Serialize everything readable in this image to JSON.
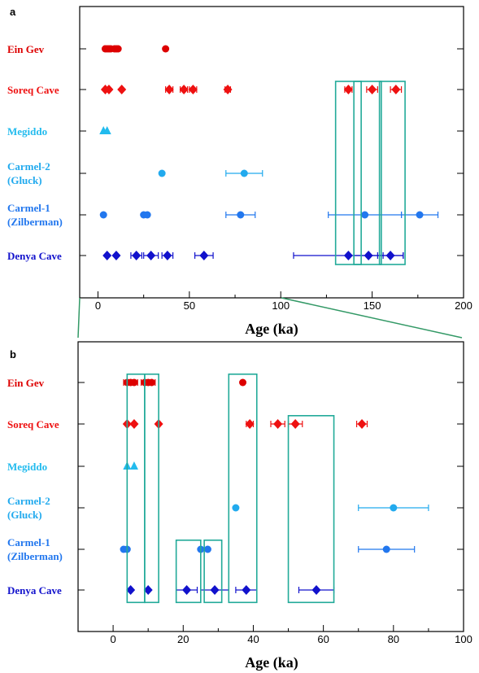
{
  "colors": {
    "ein_gev": "#dd0000",
    "soreq": "#ee1111",
    "megiddo": "#22bbee",
    "carmel2": "#22aaee",
    "carmel1": "#2277ee",
    "denya": "#1111cc",
    "boxes": "#22aa99",
    "connector": "#339966"
  },
  "rows": [
    {
      "id": "ein-gev",
      "lines": [
        "Ein Gev"
      ],
      "color_key": "ein_gev"
    },
    {
      "id": "soreq-cave",
      "lines": [
        "Soreq Cave"
      ],
      "color_key": "soreq"
    },
    {
      "id": "megiddo",
      "lines": [
        "Megiddo"
      ],
      "color_key": "megiddo"
    },
    {
      "id": "carmel-2",
      "lines": [
        "Carmel-2",
        "(Gluck)"
      ],
      "color_key": "carmel2"
    },
    {
      "id": "carmel-1",
      "lines": [
        "Carmel-1",
        "(Zilberman)"
      ],
      "color_key": "carmel1"
    },
    {
      "id": "denya-cave",
      "lines": [
        "Denya Cave"
      ],
      "color_key": "denya"
    }
  ],
  "chart_data": [
    {
      "panel": "a",
      "type": "scatter",
      "xlabel": "Age (ka)",
      "xlim": [
        -10,
        200
      ],
      "xticks": [
        0,
        50,
        100,
        150,
        200
      ],
      "series": [
        {
          "name": "Ein Gev",
          "marker": "circle",
          "points": [
            [
              4,
              0
            ],
            [
              5,
              0
            ],
            [
              6,
              0
            ],
            [
              7,
              0
            ],
            [
              9,
              0
            ],
            [
              10,
              0
            ],
            [
              11,
              0
            ],
            [
              37,
              0
            ]
          ]
        },
        {
          "name": "Soreq Cave",
          "marker": "diamond",
          "points": [
            [
              4,
              0
            ],
            [
              6,
              0
            ],
            [
              13,
              0
            ],
            [
              39,
              2
            ],
            [
              47,
              2
            ],
            [
              52,
              2
            ],
            [
              71,
              1.5
            ],
            [
              137,
              2
            ],
            [
              150,
              3
            ],
            [
              163,
              3
            ]
          ]
        },
        {
          "name": "Megiddo",
          "marker": "triangle",
          "points": [
            [
              3,
              0
            ],
            [
              5,
              0
            ]
          ]
        },
        {
          "name": "Carmel-2 (Gluck)",
          "marker": "circle",
          "points": [
            [
              35,
              0
            ],
            [
              80,
              10
            ]
          ]
        },
        {
          "name": "Carmel-1 (Zilberman)",
          "marker": "circle",
          "points": [
            [
              3,
              0
            ],
            [
              25,
              0
            ],
            [
              27,
              0
            ],
            [
              78,
              8
            ],
            [
              146,
              20
            ],
            [
              176,
              10
            ]
          ]
        },
        {
          "name": "Denya Cave",
          "marker": "diamond",
          "points": [
            [
              5,
              0
            ],
            [
              10,
              0
            ],
            [
              21,
              3
            ],
            [
              29,
              4
            ],
            [
              38,
              3
            ],
            [
              58,
              5
            ],
            [
              137,
              30
            ],
            [
              148,
              8
            ],
            [
              160,
              7
            ]
          ]
        }
      ],
      "boxes": [
        [
          130,
          144,
          1,
          6
        ],
        [
          140,
          155,
          1,
          6
        ],
        [
          154,
          168,
          1,
          6
        ]
      ]
    },
    {
      "panel": "b",
      "type": "scatter",
      "xlabel": "Age (ka)",
      "xlim": [
        -10,
        100
      ],
      "xticks": [
        0,
        20,
        40,
        60,
        80,
        100
      ],
      "series": [
        {
          "name": "Ein Gev",
          "marker": "circle",
          "points": [
            [
              4,
              1
            ],
            [
              5,
              1
            ],
            [
              6,
              1
            ],
            [
              9,
              1
            ],
            [
              10,
              1
            ],
            [
              11,
              1
            ],
            [
              37,
              0
            ]
          ]
        },
        {
          "name": "Soreq Cave",
          "marker": "diamond",
          "points": [
            [
              4,
              0
            ],
            [
              6,
              0
            ],
            [
              13,
              0
            ],
            [
              39,
              1
            ],
            [
              47,
              2
            ],
            [
              52,
              2
            ],
            [
              71,
              1.5
            ]
          ]
        },
        {
          "name": "Megiddo",
          "marker": "triangle",
          "points": [
            [
              4,
              0
            ],
            [
              6,
              0
            ]
          ]
        },
        {
          "name": "Carmel-2 (Gluck)",
          "marker": "circle",
          "points": [
            [
              35,
              0
            ],
            [
              80,
              10
            ]
          ]
        },
        {
          "name": "Carmel-1 (Zilberman)",
          "marker": "circle",
          "points": [
            [
              3,
              0
            ],
            [
              4,
              0
            ],
            [
              25,
              0
            ],
            [
              27,
              0
            ],
            [
              78,
              8
            ]
          ]
        },
        {
          "name": "Denya Cave",
          "marker": "diamond",
          "points": [
            [
              5,
              0
            ],
            [
              10,
              0
            ],
            [
              21,
              3
            ],
            [
              29,
              4
            ],
            [
              38,
              3
            ],
            [
              58,
              5
            ]
          ]
        }
      ],
      "boxes": [
        [
          4,
          9,
          0,
          6
        ],
        [
          9,
          13,
          0,
          6
        ],
        [
          18,
          25,
          4,
          6
        ],
        [
          26,
          31,
          4,
          6
        ],
        [
          33,
          41,
          0,
          6
        ],
        [
          50,
          63,
          1,
          6
        ]
      ]
    }
  ]
}
